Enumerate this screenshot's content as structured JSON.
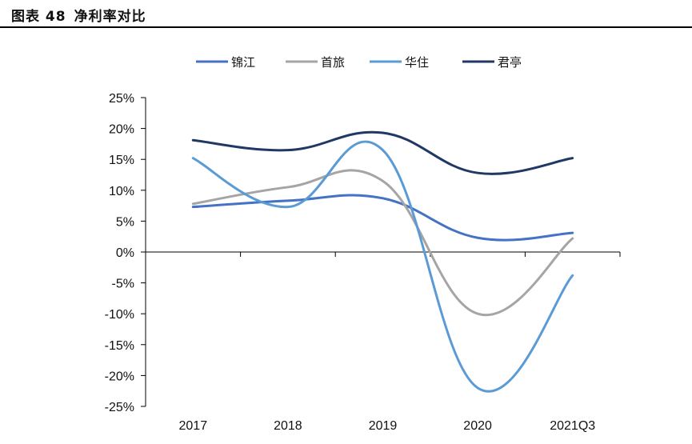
{
  "figure": {
    "label": "图表 48",
    "title": "净利率对比"
  },
  "chart_data": {
    "type": "line",
    "title": "净利率对比",
    "xlabel": "",
    "ylabel": "",
    "categories": [
      "2017",
      "2018",
      "2019",
      "2020",
      "2021Q3"
    ],
    "ylim": [
      -25,
      25
    ],
    "yticks": [
      25,
      20,
      15,
      10,
      5,
      0,
      -5,
      -10,
      -15,
      -20,
      -25
    ],
    "ytick_labels": [
      "25%",
      "20%",
      "15%",
      "10%",
      "5%",
      "0%",
      "-5%",
      "-10%",
      "-15%",
      "-20%",
      "-25%"
    ],
    "legend_position": "top",
    "smooth": true,
    "series": [
      {
        "name": "锦江",
        "color": "#4472C4",
        "values": [
          7.3,
          8.3,
          8.7,
          2.3,
          3.1
        ]
      },
      {
        "name": "首旅",
        "color": "#A5A5A5",
        "values": [
          7.8,
          10.5,
          11.5,
          -10.0,
          2.2
        ]
      },
      {
        "name": "华住",
        "color": "#5B9BD5",
        "values": [
          15.2,
          7.3,
          16.5,
          -22.0,
          -3.8
        ]
      },
      {
        "name": "君亭",
        "color": "#203864",
        "values": [
          18.1,
          16.5,
          19.3,
          12.8,
          15.2
        ]
      }
    ]
  }
}
